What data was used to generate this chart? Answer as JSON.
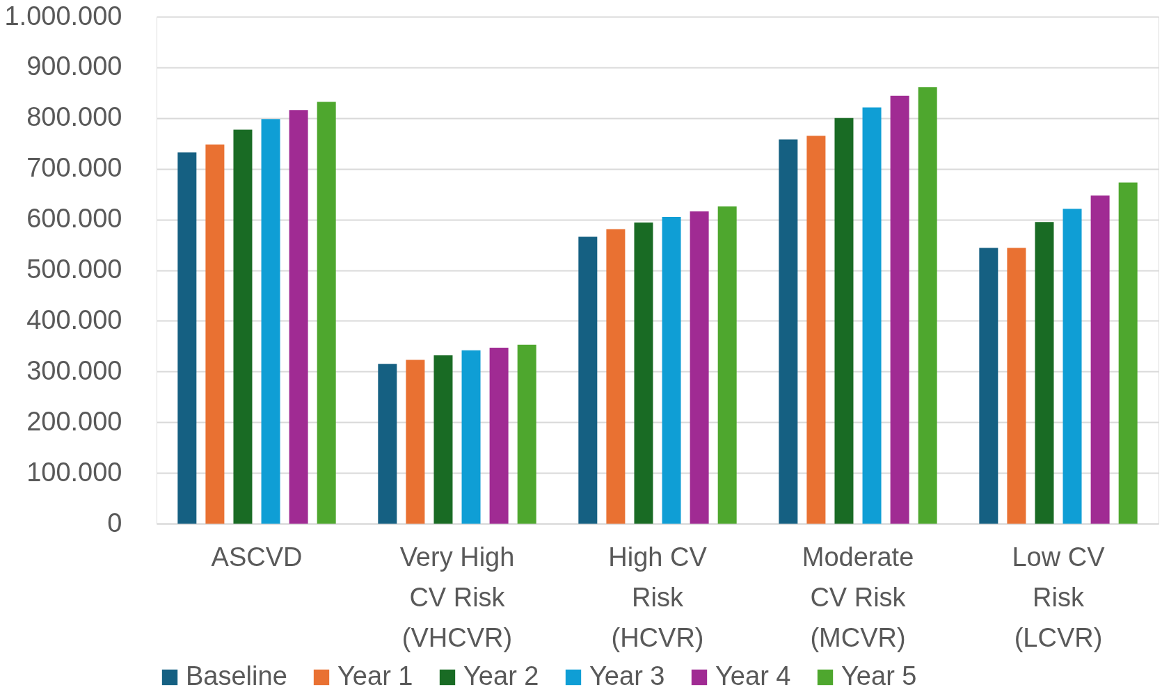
{
  "chart_data": {
    "type": "bar",
    "categories": [
      "ASCVD",
      "Very High CV Risk (VHCVR)",
      "High CV Risk (HCVR)",
      "Moderate CV Risk (MCVR)",
      "Low CV Risk (LCVR)"
    ],
    "series": [
      {
        "name": "Baseline",
        "color": "#156082",
        "values": [
          732000,
          315000,
          566000,
          758000,
          544000
        ]
      },
      {
        "name": "Year 1",
        "color": "#e97132",
        "values": [
          748000,
          323000,
          581000,
          765000,
          544000
        ]
      },
      {
        "name": "Year 2",
        "color": "#196b24",
        "values": [
          777000,
          332000,
          594000,
          800000,
          595000
        ]
      },
      {
        "name": "Year 3",
        "color": "#0f9ed5",
        "values": [
          798000,
          342000,
          605000,
          821000,
          621000
        ]
      },
      {
        "name": "Year 4",
        "color": "#a02b93",
        "values": [
          816000,
          347000,
          616000,
          844000,
          647000
        ]
      },
      {
        "name": "Year 5",
        "color": "#4ea72e",
        "values": [
          832000,
          353000,
          626000,
          861000,
          673000
        ]
      }
    ],
    "ylim": [
      0,
      1000000
    ],
    "yticks": [
      {
        "value": 0,
        "label": "0"
      },
      {
        "value": 100000,
        "label": "100.000"
      },
      {
        "value": 200000,
        "label": "200.000"
      },
      {
        "value": 300000,
        "label": "300.000"
      },
      {
        "value": 400000,
        "label": "400.000"
      },
      {
        "value": 500000,
        "label": "500.000"
      },
      {
        "value": 600000,
        "label": "600.000"
      },
      {
        "value": 700000,
        "label": "700.000"
      },
      {
        "value": 800000,
        "label": "800.000"
      },
      {
        "value": 900000,
        "label": "900.000"
      },
      {
        "value": 1000000,
        "label": "1.000.000"
      }
    ],
    "grid": "y",
    "legend": "bottom"
  }
}
